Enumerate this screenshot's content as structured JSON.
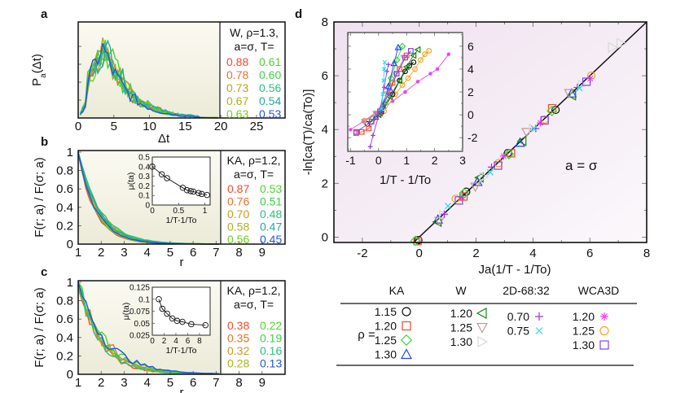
{
  "chart_data": [
    {
      "panel": "a",
      "type": "line",
      "panel_label": "a",
      "xlabel": "Δt",
      "ylabel": "Pa(Δt)",
      "xlim": [
        0,
        29
      ],
      "xticks": [
        0,
        5,
        10,
        15,
        20,
        25
      ],
      "plot_xmax": 20,
      "legend": {
        "header": [
          "W, ρ=1.3,",
          "a=σ, T="
        ],
        "entries": [
          {
            "label": "0.88",
            "color": "#f44a2a"
          },
          {
            "label": "0.78",
            "color": "#e8722b"
          },
          {
            "label": "0.73",
            "color": "#c99a1e"
          },
          {
            "label": "0.67",
            "color": "#a8b41c"
          },
          {
            "label": "0.63",
            "color": "#6fcf1f"
          },
          {
            "label": "0.61",
            "color": "#4cd62c"
          },
          {
            "label": "0.60",
            "color": "#3fcf49"
          },
          {
            "label": "0.56",
            "color": "#2fbf7a"
          },
          {
            "label": "0.54",
            "color": "#26a99a"
          },
          {
            "label": "0.53",
            "color": "#2255e0"
          }
        ]
      },
      "series_shape": {
        "peak_x": 3.5,
        "peak_y": 0.85,
        "tail_end": 18
      }
    },
    {
      "panel": "b",
      "type": "line",
      "panel_label": "b",
      "xlabel": "r",
      "ylabel": "F(r; a) / F(σ; a)",
      "xlim": [
        1,
        10
      ],
      "ylim": [
        0,
        1
      ],
      "xticks": [
        1,
        2,
        3,
        4,
        5,
        6,
        7,
        8,
        9
      ],
      "yticks": [
        0,
        0.2,
        0.4,
        0.6,
        0.8,
        1
      ],
      "ytick_labels": [
        "0",
        "0.2",
        "0.4",
        "0.6",
        "0.8",
        "1"
      ],
      "plot_xmax": 7.2,
      "legend": {
        "header": [
          "KA, ρ=1.2,",
          "a=σ, T="
        ],
        "entries": [
          {
            "label": "0.87",
            "color": "#f44a2a"
          },
          {
            "label": "0.76",
            "color": "#e8722b"
          },
          {
            "label": "0.70",
            "color": "#c99a1e"
          },
          {
            "label": "0.58",
            "color": "#a8b41c"
          },
          {
            "label": "0.56",
            "color": "#6fcf1f"
          },
          {
            "label": "0.53",
            "color": "#4cd62c"
          },
          {
            "label": "0.51",
            "color": "#3fcf49"
          },
          {
            "label": "0.48",
            "color": "#2fbf7a"
          },
          {
            "label": "0.47",
            "color": "#26a99a"
          },
          {
            "label": "0.45",
            "color": "#2255e0"
          }
        ]
      },
      "decay_length": 0.85,
      "inset": {
        "xlabel": "1/T-1/To",
        "ylabel": "μ(ta)",
        "xlim": [
          0,
          1.1
        ],
        "ylim": [
          0,
          0.5
        ],
        "xticks": [
          0,
          0.5,
          1
        ],
        "xtick_labels": [
          "0",
          "0.5",
          "1"
        ],
        "yticks": [
          0,
          0.1,
          0.2,
          0.3,
          0.4,
          0.5
        ],
        "ytick_labels": [
          "0",
          "0.1",
          "0.2",
          "0.3",
          "0.4",
          "0.5"
        ],
        "x": [
          0.0,
          0.18,
          0.28,
          0.58,
          0.66,
          0.73,
          0.78,
          0.88,
          0.94,
          1.04
        ],
        "y": [
          0.4,
          0.32,
          0.28,
          0.18,
          0.155,
          0.145,
          0.14,
          0.125,
          0.115,
          0.105
        ]
      }
    },
    {
      "panel": "c",
      "type": "line",
      "panel_label": "c",
      "xlabel": "r",
      "ylabel": "F(r; a) / F(σ; a)",
      "xlim": [
        1,
        10
      ],
      "ylim": [
        0,
        1
      ],
      "xticks": [
        1,
        2,
        3,
        4,
        5,
        6,
        7,
        8,
        9
      ],
      "yticks": [
        0,
        0.2,
        0.4,
        0.6,
        0.8,
        1
      ],
      "ytick_labels": [
        "0",
        "0.2",
        "0.4",
        "0.6",
        "0.8",
        "1"
      ],
      "plot_xmax": 7.2,
      "legend": {
        "header": [
          "KA, ρ=1.2,",
          "a=σ, T="
        ],
        "entries": [
          {
            "label": "0.38",
            "color": "#f44a2a"
          },
          {
            "label": "0.35",
            "color": "#e8722b"
          },
          {
            "label": "0.32",
            "color": "#c99a1e"
          },
          {
            "label": "0.28",
            "color": "#a8b41c"
          },
          {
            "label": "0.22",
            "color": "#4cd62c"
          },
          {
            "label": "0.19",
            "color": "#3fcf49"
          },
          {
            "label": "0.16",
            "color": "#2fbf7a"
          },
          {
            "label": "0.13",
            "color": "#2255e0"
          }
        ]
      },
      "decay_length": 1.1,
      "inset": {
        "xlabel": "1/T-1/To",
        "ylabel": "μ(ta)",
        "xlim": [
          0,
          9.8
        ],
        "ylim": [
          0.025,
          0.125
        ],
        "xticks": [
          0,
          2,
          4,
          6,
          8
        ],
        "xtick_labels": [
          "0",
          "2",
          "4",
          "6",
          "8"
        ],
        "yticks": [
          0.025,
          0.05,
          0.075,
          0.1,
          0.125
        ],
        "ytick_labels": [
          "0.025",
          "0.05",
          "0.075",
          "0.1",
          "0.125"
        ],
        "x": [
          1.1,
          1.7,
          2.5,
          3.4,
          4.2,
          5.1,
          6.6,
          9.0
        ],
        "y": [
          0.1,
          0.08,
          0.07,
          0.06,
          0.055,
          0.053,
          0.048,
          0.046
        ]
      }
    },
    {
      "panel": "d",
      "type": "scatter",
      "panel_label": "d",
      "xlabel": "Ja(1/T - 1/To)",
      "ylabel": "-ln[ca(T)/ca(To)]",
      "xlim": [
        -3,
        8
      ],
      "ylim": [
        -0.2,
        8
      ],
      "xticks": [
        -2,
        0,
        2,
        4,
        6,
        8
      ],
      "yticks": [
        0,
        2,
        4,
        6,
        8
      ],
      "annotation": "a = σ",
      "reference_line": {
        "slope": 1,
        "intercept": 0
      },
      "collapsed_points_x": [
        0.0,
        0.6,
        0.9,
        1.4,
        1.7,
        2.1,
        2.4,
        2.8,
        3.2,
        3.6,
        4.0,
        4.4,
        4.8,
        5.2,
        5.6,
        6.0
      ],
      "inset": {
        "xlabel": "1/T - 1/To",
        "xlim": [
          -1.1,
          3
        ],
        "ylim": [
          -3.2,
          7.2
        ],
        "xticks": [
          -1,
          0,
          1,
          2,
          3
        ],
        "yticks": [
          -2,
          0,
          2,
          4,
          6
        ],
        "series": [
          {
            "name": "WCA3D 1.20",
            "marker": "star-dot",
            "color": "#ee44ee",
            "x": [
              -1.0,
              -0.55,
              -0.1,
              0.5,
              0.95,
              1.4,
              1.85,
              2.1,
              2.5
            ],
            "y": [
              -1.3,
              -0.6,
              0.2,
              1.2,
              2.0,
              2.9,
              3.6,
              4.0,
              5.3
            ]
          },
          {
            "name": "WCA3D 1.25",
            "marker": "circle",
            "color": "#f5a623",
            "x": [
              -0.5,
              0.2,
              0.6,
              0.85,
              1.05,
              1.3,
              1.5,
              1.65,
              1.8
            ],
            "y": [
              -0.5,
              0.3,
              1.8,
              2.6,
              3.2,
              4.0,
              4.8,
              5.3,
              5.6
            ]
          },
          {
            "name": "KA 1.15",
            "marker": "circle",
            "color": "#111111",
            "x": [
              -0.4,
              0.1,
              0.5,
              0.75,
              0.95,
              1.1,
              1.25
            ],
            "y": [
              -0.8,
              0.2,
              1.8,
              3.0,
              3.8,
              4.3,
              4.6
            ]
          },
          {
            "name": "KA 1.20",
            "marker": "square",
            "color": "#f44a2a",
            "x": [
              -0.8,
              -0.6,
              -0.35,
              0.05,
              0.5,
              0.75,
              1.0
            ],
            "y": [
              -1.6,
              -1.5,
              -1.2,
              0.1,
              2.8,
              4.0,
              5.2
            ]
          },
          {
            "name": "KA 1.25",
            "marker": "diamond",
            "color": "#33dd33",
            "x": [
              -0.2,
              0.2,
              0.45,
              0.65,
              0.85
            ],
            "y": [
              -0.3,
              1.0,
              3.2,
              4.8,
              6.0
            ]
          },
          {
            "name": "KA 1.30",
            "marker": "triangle-up",
            "color": "#2244ee",
            "x": [
              -0.1,
              0.15,
              0.35,
              0.55,
              0.7
            ],
            "y": [
              -0.2,
              0.8,
              2.5,
              4.5,
              5.9
            ]
          },
          {
            "name": "W 1.20",
            "marker": "triangle-left",
            "color": "#118811",
            "x": [
              0.0,
              0.4,
              0.75,
              1.0,
              1.25,
              1.4
            ],
            "y": [
              0.0,
              1.6,
              3.0,
              4.2,
              5.2,
              5.7
            ]
          },
          {
            "name": "W 1.25",
            "marker": "triangle-down",
            "color": "#c09a96",
            "x": [
              -0.5,
              -0.1,
              0.3,
              0.6,
              0.9
            ],
            "y": [
              -0.6,
              0.1,
              1.8,
              3.5,
              5.0
            ]
          },
          {
            "name": "WCA3D 1.30",
            "marker": "square",
            "color": "#8844dd",
            "x": [
              -0.8,
              -0.25,
              0.05,
              0.4,
              0.65,
              0.95,
              1.15
            ],
            "y": [
              -1.5,
              -0.6,
              0.3,
              2.0,
              3.6,
              5.0,
              5.6
            ]
          },
          {
            "name": "2D-68:32 0.70",
            "marker": "plus",
            "color": "#9933ee",
            "x": [
              -0.3,
              -0.2,
              0.05,
              0.2,
              0.3,
              0.35
            ],
            "y": [
              -2.8,
              -1.8,
              0.3,
              2.4,
              3.8,
              4.4
            ]
          },
          {
            "name": "2D-68:32 0.75",
            "marker": "x",
            "color": "#22ddee",
            "x": [
              0.1,
              0.15,
              0.18,
              0.2,
              0.22
            ],
            "y": [
              0.5,
              1.8,
              3.0,
              4.0,
              4.6
            ]
          }
        ]
      }
    }
  ],
  "legend_table": {
    "rho_label": "ρ =",
    "columns": [
      {
        "header": "KA",
        "entries": [
          {
            "value": "1.15",
            "marker": "circle",
            "color": "#111111"
          },
          {
            "value": "1.20",
            "marker": "square",
            "color": "#f44a2a"
          },
          {
            "value": "1.25",
            "marker": "diamond",
            "color": "#33dd33"
          },
          {
            "value": "1.30",
            "marker": "triangle-up",
            "color": "#2244ee"
          }
        ]
      },
      {
        "header": "W",
        "entries": [
          {
            "value": "1.20",
            "marker": "triangle-left",
            "color": "#118811"
          },
          {
            "value": "1.25",
            "marker": "triangle-down",
            "color": "#c09a96"
          },
          {
            "value": "1.30",
            "marker": "triangle-right",
            "color": "#d8d8d8"
          }
        ]
      },
      {
        "header": "2D-68:32",
        "entries": [
          {
            "value": "0.70",
            "marker": "plus",
            "color": "#9933ee"
          },
          {
            "value": "0.75",
            "marker": "x",
            "color": "#22ddee"
          }
        ]
      },
      {
        "header": "WCA3D",
        "entries": [
          {
            "value": "1.20",
            "marker": "star",
            "color": "#ee44ee"
          },
          {
            "value": "1.25",
            "marker": "circle",
            "color": "#f5a623"
          },
          {
            "value": "1.30",
            "marker": "square",
            "color": "#8844dd"
          }
        ]
      }
    ]
  }
}
